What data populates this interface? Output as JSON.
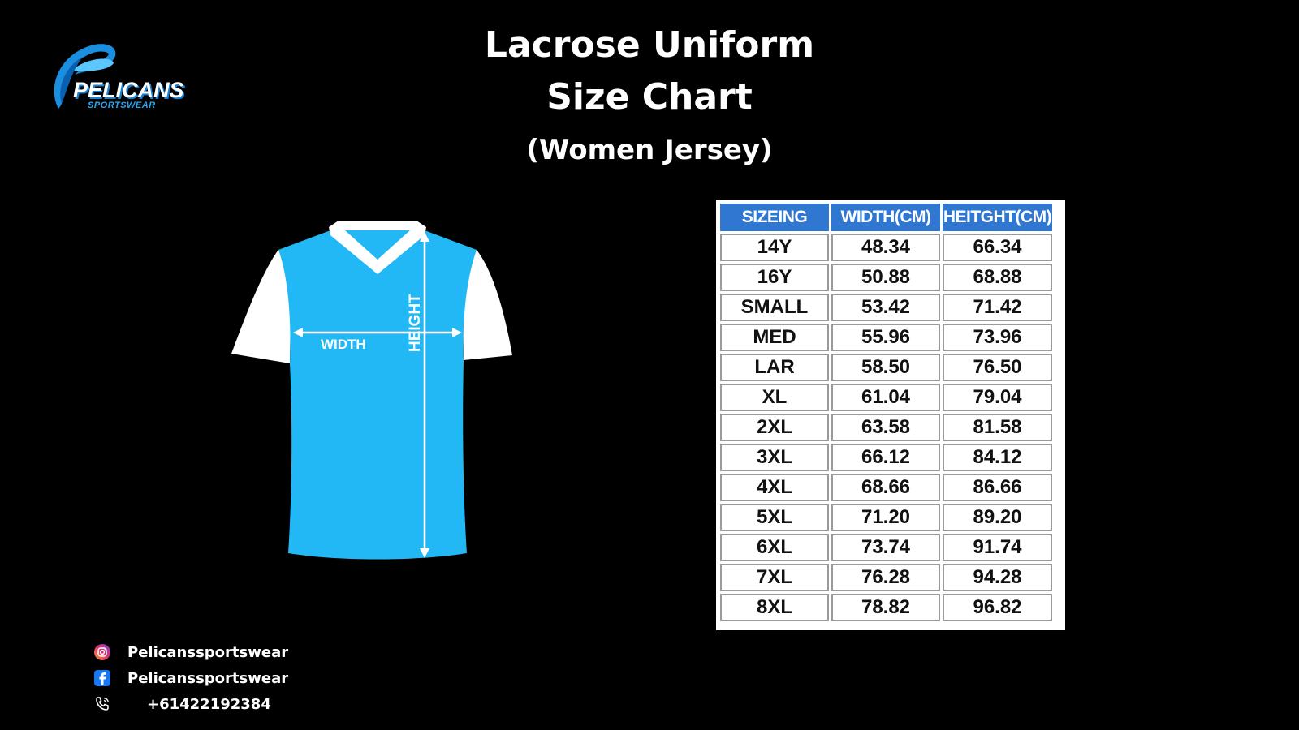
{
  "brand": {
    "name": "PELICANS",
    "tagline": "SPORTSWEAR"
  },
  "title": {
    "line1": "Lacrose Uniform",
    "line2": "Size Chart",
    "subtitle": "(Women Jersey)"
  },
  "jersey": {
    "width_label": "WIDTH",
    "height_label": "HEIGHT",
    "body_color": "#22b8f5",
    "sleeve_color": "#ffffff"
  },
  "size_table": {
    "headers": [
      "SIZEING",
      "WIDTH(CM)",
      "HEITGHT(CM)"
    ],
    "header_color": "#2f77d0",
    "rows": [
      [
        "14Y",
        "48.34",
        "66.34"
      ],
      [
        "16Y",
        "50.88",
        "68.88"
      ],
      [
        "SMALL",
        "53.42",
        "71.42"
      ],
      [
        "MED",
        "55.96",
        "73.96"
      ],
      [
        "LAR",
        "58.50",
        "76.50"
      ],
      [
        "XL",
        "61.04",
        "79.04"
      ],
      [
        "2XL",
        "63.58",
        "81.58"
      ],
      [
        "3XL",
        "66.12",
        "84.12"
      ],
      [
        "4XL",
        "68.66",
        "86.66"
      ],
      [
        "5XL",
        "71.20",
        "89.20"
      ],
      [
        "6XL",
        "73.74",
        "91.74"
      ],
      [
        "7XL",
        "76.28",
        "94.28"
      ],
      [
        "8XL",
        "78.82",
        "96.82"
      ]
    ]
  },
  "contacts": {
    "instagram": {
      "icon": "instagram-icon",
      "text": "Pelicanssportswear"
    },
    "facebook": {
      "icon": "facebook-icon",
      "text": "Pelicanssportswear"
    },
    "phone": {
      "icon": "phone-icon",
      "text": "+61422192384"
    }
  }
}
